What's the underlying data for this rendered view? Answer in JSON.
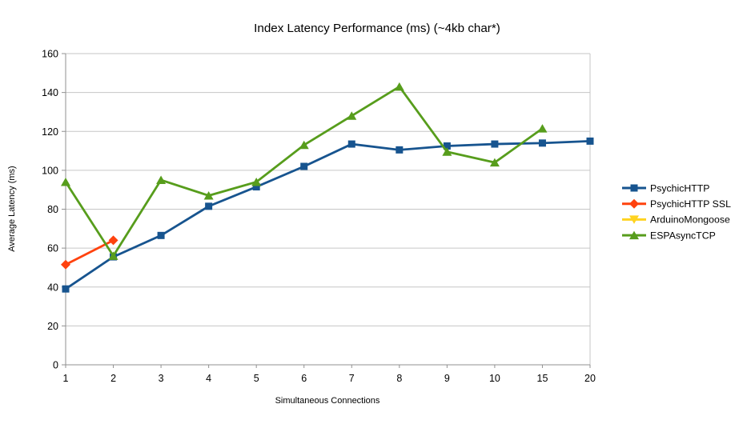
{
  "chart_data": {
    "type": "line",
    "title": "Index Latency Performance (ms) (~4kb char*)",
    "xlabel": "Simultaneous Connections",
    "ylabel": "Average Latency (ms)",
    "x_categories": [
      "1",
      "2",
      "3",
      "4",
      "5",
      "6",
      "7",
      "8",
      "9",
      "10",
      "15",
      "20"
    ],
    "ylim": [
      0,
      160
    ],
    "y_ticks": [
      0,
      20,
      40,
      60,
      80,
      100,
      120,
      140,
      160
    ],
    "grid": "horizontal",
    "legend_position": "right",
    "colors": {
      "grid": "#c6c6c6",
      "axis": "#919191",
      "background": "#ffffff"
    },
    "series": [
      {
        "name": "PsychicHTTP",
        "color": "#17548f",
        "marker": "square",
        "values": [
          39,
          55.5,
          66.5,
          81.5,
          91.5,
          102,
          113.5,
          110.5,
          112.5,
          113.5,
          114,
          115
        ]
      },
      {
        "name": "PsychicHTTP SSL",
        "color": "#ff420e",
        "marker": "diamond",
        "values": [
          51.5,
          64
        ]
      },
      {
        "name": "ArduinoMongoose",
        "color": "#ffd320",
        "marker": "triangle-down",
        "values": []
      },
      {
        "name": "ESPAsyncTCP",
        "color": "#579d1c",
        "marker": "triangle-up",
        "values": [
          94,
          56,
          95,
          87,
          94,
          113,
          128,
          143,
          109.5,
          104,
          121.5
        ]
      }
    ]
  }
}
